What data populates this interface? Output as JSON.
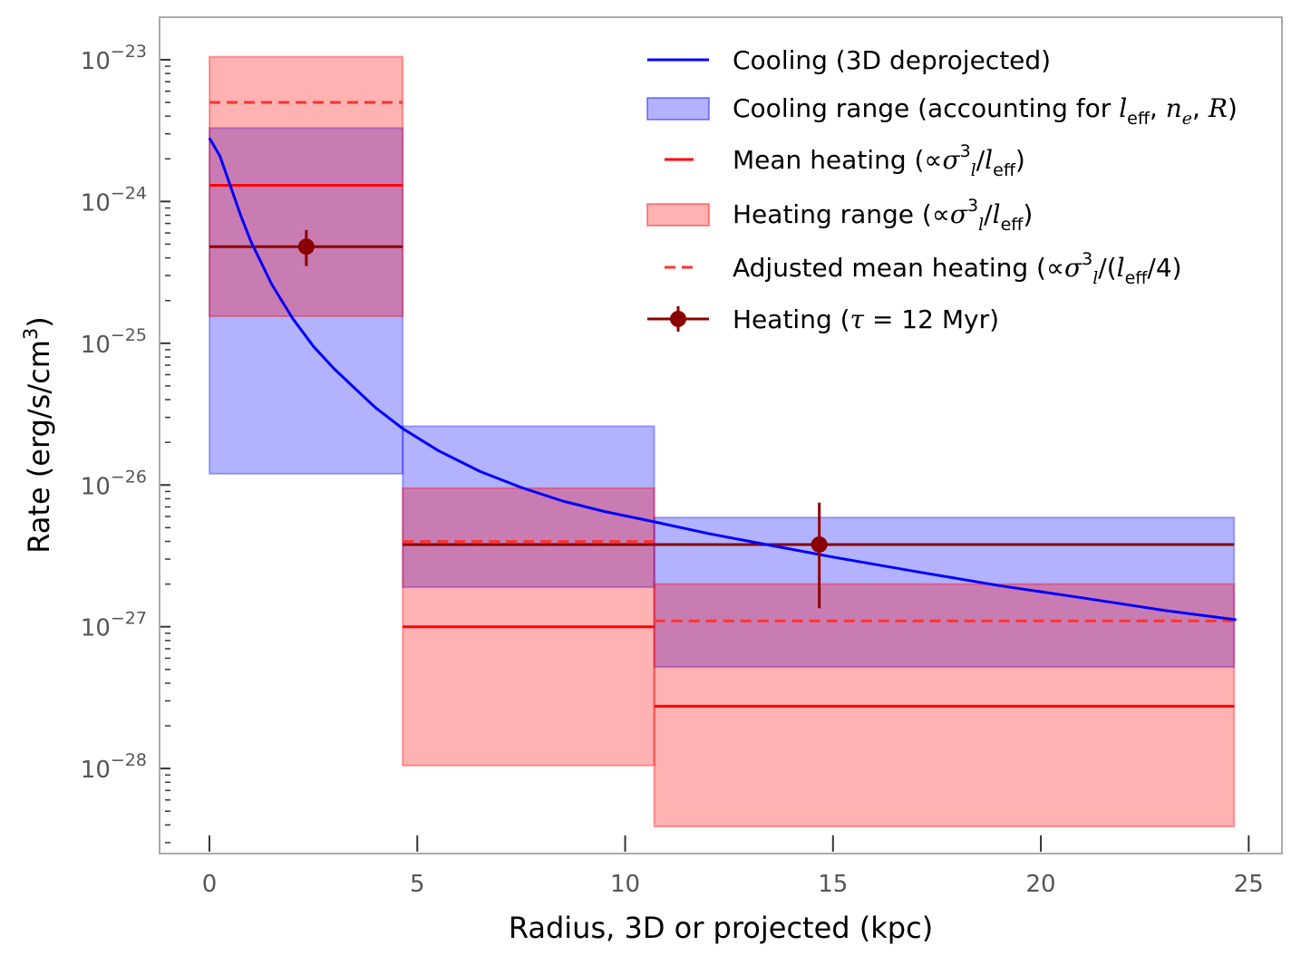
{
  "chart_data": {
    "type": "line",
    "xlabel": "Radius, 3D or projected (kpc)",
    "ylabel": "Rate (erg/s/cm",
    "ylabel_sup": "3",
    "ylabel_close": ")",
    "xlim": [
      -1.2,
      25.8
    ],
    "ylim_log10": [
      -28.6,
      -22.7
    ],
    "x_ticks": [
      0,
      5,
      10,
      15,
      20,
      25
    ],
    "x_tick_labels": [
      "0",
      "5",
      "10",
      "15",
      "20",
      "25"
    ],
    "y_ticks": [
      -28,
      -27,
      -26,
      -25,
      -24,
      -23
    ],
    "y_tick_base": "10",
    "y_tick_exponents": [
      "−28",
      "−27",
      "−26",
      "−25",
      "−24",
      "−23"
    ],
    "cooling_curve": {
      "name": "Cooling (3D deprojected)",
      "color": "#0000ff",
      "x": [
        0,
        0.25,
        0.5,
        0.75,
        1.0,
        1.5,
        2.0,
        2.5,
        3.0,
        3.5,
        4.0,
        4.65,
        5.5,
        6.5,
        7.5,
        8.5,
        9.5,
        10.7,
        12,
        13.5,
        15,
        17,
        19,
        21,
        23,
        24.7
      ],
      "y": [
        2.8e-24,
        2.1e-24,
        1.3e-24,
        8e-25,
        5.2e-25,
        2.6e-25,
        1.5e-25,
        9.5e-26,
        6.6e-26,
        4.8e-26,
        3.5e-26,
        2.5e-26,
        1.75e-26,
        1.25e-26,
        9.6e-27,
        7.7e-27,
        6.5e-27,
        5.5e-27,
        4.55e-27,
        3.75e-27,
        3.1e-27,
        2.45e-27,
        1.95e-27,
        1.6e-27,
        1.3e-27,
        1.12e-27
      ]
    },
    "bins": [
      {
        "x0": 0,
        "x1": 4.65,
        "cooling_low": 1.2e-26,
        "cooling_high": 3.3e-24,
        "heating_low": 1.55e-25,
        "heating_high": 1.05e-23,
        "mean_heating": 1.3e-24,
        "adjusted_mean_heating": 5e-24,
        "tau_level": 4.8e-25
      },
      {
        "x0": 4.65,
        "x1": 10.7,
        "cooling_low": 1.9e-27,
        "cooling_high": 2.6e-26,
        "heating_low": 1.05e-28,
        "heating_high": 9.5e-27,
        "mean_heating": 1e-27,
        "adjusted_mean_heating": 4e-27,
        "tau_level": 3.8e-27
      },
      {
        "x0": 10.7,
        "x1": 24.65,
        "cooling_low": 5.2e-28,
        "cooling_high": 5.9e-27,
        "heating_low": 3.9e-29,
        "heating_high": 2e-27,
        "mean_heating": 2.75e-28,
        "adjusted_mean_heating": 1.1e-27,
        "tau_level": 3.8e-27
      }
    ],
    "heating_points": {
      "name": "Heating (τ = 12 Myr)",
      "color": "#8b0000",
      "points": [
        {
          "x": 2.33,
          "y": 4.8e-25,
          "y_low": 3.5e-25,
          "y_high": 6.3e-25
        },
        {
          "x": 14.67,
          "y": 3.8e-27,
          "y_low": 1.35e-27,
          "y_high": 7.5e-27
        }
      ]
    },
    "colors": {
      "cooling_fill": "#0000ff",
      "heating_fill": "#ff0000",
      "mean_heating": "#ff0000",
      "adjusted_mean_heating": "#ff3333",
      "tau_level": "#8b0000",
      "axes": "#aaaaaa"
    },
    "legend": {
      "position": "top-right",
      "entries": [
        {
          "key": "cooling",
          "segments": [
            {
              "t": "Cooling (3D deprojected)"
            }
          ]
        },
        {
          "key": "cooling-range",
          "segments": [
            {
              "t": "Cooling range (accounting for "
            },
            {
              "t": "l",
              "math": true
            },
            {
              "t": "eff",
              "sub": true
            },
            {
              "t": ", "
            },
            {
              "t": "n",
              "math": true
            },
            {
              "t": "e",
              "sub": true,
              "math": true
            },
            {
              "t": ", "
            },
            {
              "t": "R",
              "math": true
            },
            {
              "t": ")"
            }
          ]
        },
        {
          "key": "mean-heating",
          "segments": [
            {
              "t": "Mean heating ("
            },
            {
              "t": "∝"
            },
            {
              "t": "σ",
              "math": true
            },
            {
              "t": "3",
              "sup": true
            },
            {
              "t": "l",
              "sub": true,
              "math": true
            },
            {
              "t": "/"
            },
            {
              "t": "l",
              "math": true
            },
            {
              "t": "eff",
              "sub": true
            },
            {
              "t": ")"
            }
          ]
        },
        {
          "key": "heating-range",
          "segments": [
            {
              "t": "Heating range ("
            },
            {
              "t": "∝"
            },
            {
              "t": "σ",
              "math": true
            },
            {
              "t": "3",
              "sup": true
            },
            {
              "t": "l",
              "sub": true,
              "math": true
            },
            {
              "t": "/"
            },
            {
              "t": "l",
              "math": true
            },
            {
              "t": "eff",
              "sub": true
            },
            {
              "t": ")"
            }
          ]
        },
        {
          "key": "adjusted-mean-heating",
          "segments": [
            {
              "t": "Adjusted mean heating ("
            },
            {
              "t": "∝"
            },
            {
              "t": "σ",
              "math": true
            },
            {
              "t": "3",
              "sup": true
            },
            {
              "t": "l",
              "sub": true,
              "math": true
            },
            {
              "t": "/("
            },
            {
              "t": "l",
              "math": true
            },
            {
              "t": "eff",
              "sub": true
            },
            {
              "t": "/4)"
            }
          ]
        },
        {
          "key": "heating-tau",
          "segments": [
            {
              "t": "Heating ("
            },
            {
              "t": "τ",
              "math": true
            },
            {
              "t": " = 12 Myr)"
            }
          ]
        }
      ]
    }
  }
}
